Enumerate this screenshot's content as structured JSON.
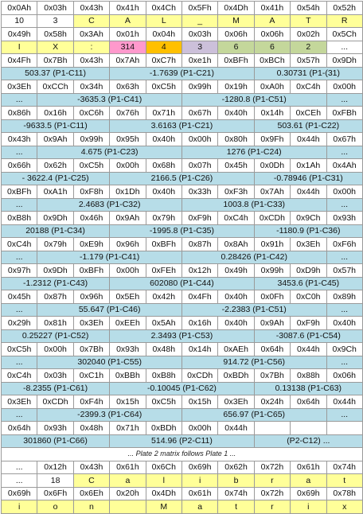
{
  "plate1": {
    "header": {
      "hex": [
        "0x0Ah",
        "0x03h",
        "0x43h",
        "0x41h",
        "0x4Ch",
        "0x5Fh",
        "0x4Dh",
        "0x41h",
        "0x54h",
        "0x52h"
      ],
      "ascii": [
        "10",
        "3",
        "C",
        "A",
        "L",
        "_",
        "M",
        "A",
        "T",
        "R"
      ],
      "hex2": [
        "0x49h",
        "0x58h",
        "0x3Ah",
        "0x01h",
        "0x04h",
        "0x03h",
        "0x06h",
        "0x06h",
        "0x02h",
        "0x5Ch"
      ],
      "ascii2": [
        "I",
        "X",
        ":",
        "314",
        "4",
        "3",
        "6",
        "6",
        "2",
        "..."
      ]
    },
    "rows": [
      {
        "hex": [
          "0x4Fh",
          "0x7Bh",
          "0x43h",
          "0x7Ah",
          "0xC7h",
          "0xe1h",
          "0xBFh",
          "0xBCh",
          "0x57h",
          "0x9Dh"
        ],
        "vals": [
          {
            "text": "503.37 (P1-C11)",
            "span": 3,
            "align": "l"
          },
          {
            "text": "-1.7639 (P1-C21)",
            "span": 4,
            "align": "c"
          },
          {
            "text": "0.30731 (P1-(31)",
            "span": 3,
            "align": "r"
          }
        ]
      },
      {
        "hex": [
          "0x3Eh",
          "0xCCh",
          "0x34h",
          "0x63h",
          "0xC5h",
          "0x99h",
          "0x19h",
          "0xA0h",
          "0xC4h",
          "0x00h"
        ],
        "vals": [
          {
            "text": "...",
            "span": 1,
            "align": "c"
          },
          {
            "text": "-3635.3 (P1-C41)",
            "span": 4,
            "align": "c"
          },
          {
            "text": "-1280.8 (P1-C51)",
            "span": 4,
            "align": "c"
          },
          {
            "text": "...",
            "span": 1,
            "align": "c"
          }
        ]
      },
      {
        "hex": [
          "0x86h",
          "0x16h",
          "0xC6h",
          "0x76h",
          "0x71h",
          "0x67h",
          "0x40h",
          "0x14h",
          "0xCEh",
          "0xFBh"
        ],
        "vals": [
          {
            "text": "-9633.5 (P1-C11)",
            "span": 3,
            "align": "l"
          },
          {
            "text": "3.6163 (P1-C21)",
            "span": 4,
            "align": "c"
          },
          {
            "text": "503.61 (P1-C22)",
            "span": 3,
            "align": "r"
          }
        ]
      },
      {
        "hex": [
          "0x43h",
          "0x9Ah",
          "0x99h",
          "0x95h",
          "0x40h",
          "0x00h",
          "0x80h",
          "0x9Fh",
          "0x44h",
          "0x67h"
        ],
        "vals": [
          {
            "text": "...",
            "span": 1,
            "align": "c"
          },
          {
            "text": "4.675 (P1-C23)",
            "span": 4,
            "align": "c"
          },
          {
            "text": "1276 (P1-C24)",
            "span": 4,
            "align": "c"
          },
          {
            "text": "...",
            "span": 1,
            "align": "c"
          }
        ]
      },
      {
        "hex": [
          "0x66h",
          "0x62h",
          "0xC5h",
          "0x00h",
          "0x68h",
          "0x07h",
          "0x45h",
          "0x0Dh",
          "0x1Ah",
          "0x4Ah"
        ],
        "vals": [
          {
            "text": "- 3622.4 (P1-C25)",
            "span": 3,
            "align": "l"
          },
          {
            "text": "2166.5 (P1-C26)",
            "span": 4,
            "align": "c"
          },
          {
            "text": "-0.78946 (P1-C31)",
            "span": 3,
            "align": "r"
          }
        ]
      },
      {
        "hex": [
          "0xBFh",
          "0xA1h",
          "0xF8h",
          "0x1Dh",
          "0x40h",
          "0x33h",
          "0xF3h",
          "0x7Ah",
          "0x44h",
          "0x00h"
        ],
        "vals": [
          {
            "text": "...",
            "span": 1,
            "align": "c"
          },
          {
            "text": "2.4683 (P1-C32)",
            "span": 4,
            "align": "c"
          },
          {
            "text": "1003.8 (P1-C33)",
            "span": 4,
            "align": "c"
          },
          {
            "text": "...",
            "span": 1,
            "align": "c"
          }
        ]
      },
      {
        "hex": [
          "0xB8h",
          "0x9Dh",
          "0x46h",
          "0x9Ah",
          "0x79h",
          "0xF9h",
          "0xC4h",
          "0xCDh",
          "0x9Ch",
          "0x93h"
        ],
        "vals": [
          {
            "text": "20188 (P1-C34)",
            "span": 3,
            "align": "l"
          },
          {
            "text": "-1995.8 (P1-C35)",
            "span": 4,
            "align": "c"
          },
          {
            "text": "-1180.9 (P1-C36)",
            "span": 3,
            "align": "r"
          }
        ]
      },
      {
        "hex": [
          "0xC4h",
          "0x79h",
          "0xE9h",
          "0x96h",
          "0xBFh",
          "0x87h",
          "0x8Ah",
          "0x91h",
          "0x3Eh",
          "0xF6h"
        ],
        "vals": [
          {
            "text": "...",
            "span": 1,
            "align": "c"
          },
          {
            "text": "-1.179 (P1-C41)",
            "span": 4,
            "align": "c"
          },
          {
            "text": "0.28426 (P1-C42)",
            "span": 4,
            "align": "c"
          },
          {
            "text": "...",
            "span": 1,
            "align": "c"
          }
        ]
      },
      {
        "hex": [
          "0x97h",
          "0x9Dh",
          "0xBFh",
          "0x00h",
          "0xFEh",
          "0x12h",
          "0x49h",
          "0x99h",
          "0xD9h",
          "0x57h"
        ],
        "vals": [
          {
            "text": "-1.2312 (P1-C43)",
            "span": 3,
            "align": "l"
          },
          {
            "text": "602080 (P1-C44)",
            "span": 4,
            "align": "c"
          },
          {
            "text": "3453.6 (P1-C45)",
            "span": 3,
            "align": "r"
          }
        ]
      },
      {
        "hex": [
          "0x45h",
          "0x87h",
          "0x96h",
          "0x5Eh",
          "0x42h",
          "0x4Fh",
          "0x40h",
          "0x0Fh",
          "0xC0h",
          "0x89h"
        ],
        "vals": [
          {
            "text": "...",
            "span": 1,
            "align": "c"
          },
          {
            "text": "55.647 (P1-C46)",
            "span": 4,
            "align": "c"
          },
          {
            "text": "-2.2383 (P1-C51)",
            "span": 4,
            "align": "c"
          },
          {
            "text": "...",
            "span": 1,
            "align": "c"
          }
        ]
      },
      {
        "hex": [
          "0x29h",
          "0x81h",
          "0x3Eh",
          "0xEEh",
          "0x5Ah",
          "0x16h",
          "0x40h",
          "0x9Ah",
          "0xF9h",
          "0x40h"
        ],
        "vals": [
          {
            "text": "0.25227 (P1-C52)",
            "span": 3,
            "align": "l"
          },
          {
            "text": "2.3493 (P1-C53)",
            "span": 4,
            "align": "c"
          },
          {
            "text": "-3087.6 (P1-C54)",
            "span": 3,
            "align": "r"
          }
        ]
      },
      {
        "hex": [
          "0xC5h",
          "0x00h",
          "0x7Bh",
          "0x93h",
          "0x48h",
          "0x14h",
          "0xAEh",
          "0x64h",
          "0x44h",
          "0x9Ch"
        ],
        "vals": [
          {
            "text": "...",
            "span": 1,
            "align": "c"
          },
          {
            "text": "302040 (P1-C55)",
            "span": 4,
            "align": "c"
          },
          {
            "text": "914.72 (P1-C56)",
            "span": 4,
            "align": "c"
          },
          {
            "text": "...",
            "span": 1,
            "align": "c"
          }
        ]
      },
      {
        "hex": [
          "0xC4h",
          "0x03h",
          "0xC1h",
          "0xBBh",
          "0xB8h",
          "0xCDh",
          "0xBDh",
          "0x7Bh",
          "0x88h",
          "0x06h"
        ],
        "vals": [
          {
            "text": "-8.2355 (P1-C61)",
            "span": 3,
            "align": "l"
          },
          {
            "text": "-0.10045 (P1-C62)",
            "span": 4,
            "align": "c"
          },
          {
            "text": "0.13138 (P1-C63)",
            "span": 3,
            "align": "r"
          }
        ]
      },
      {
        "hex": [
          "0x3Eh",
          "0xCDh",
          "0xF4h",
          "0x15h",
          "0xC5h",
          "0x15h",
          "0x3Eh",
          "0x24h",
          "0x64h",
          "0x44h"
        ],
        "vals": [
          {
            "text": "...",
            "span": 1,
            "align": "c"
          },
          {
            "text": "-2399.3 (P1-C64)",
            "span": 4,
            "align": "c"
          },
          {
            "text": "656.97 (P1-C65)",
            "span": 4,
            "align": "c"
          },
          {
            "text": "...",
            "span": 1,
            "align": "c"
          }
        ]
      },
      {
        "hex": [
          "0x64h",
          "0x93h",
          "0x48h",
          "0x71h",
          "0xBDh",
          "0x00h",
          "0x44h",
          "",
          "",
          ""
        ],
        "vals": [
          {
            "text": "301860 (P1-C66)",
            "span": 3,
            "align": "l"
          },
          {
            "text": "514.96 (P2-C11)",
            "span": 4,
            "align": "c"
          },
          {
            "text": "(P2-C12) ...",
            "span": 3,
            "align": "r"
          }
        ]
      }
    ]
  },
  "note": "... Plate 2 matrix follows Plate 1 ...",
  "plate2": {
    "hex": [
      "...",
      "0x12h",
      "0x43h",
      "0x61h",
      "0x6Ch",
      "0x69h",
      "0x62h",
      "0x72h",
      "0x61h",
      "0x74h"
    ],
    "ascii": [
      "...",
      "18",
      "C",
      "a",
      "l",
      "i",
      "b",
      "r",
      "a",
      "t"
    ],
    "hex2": [
      "0x69h",
      "0x6Fh",
      "0x6Eh",
      "0x20h",
      "0x4Dh",
      "0x61h",
      "0x74h",
      "0x72h",
      "0x69h",
      "0x78h"
    ],
    "ascii2": [
      "i",
      "o",
      "n",
      "",
      "M",
      "a",
      "t",
      "r",
      "i",
      "x"
    ]
  },
  "colors": {
    "value_row": "#b7dde8",
    "ascii_tag": "#ffff99",
    "highlight_pink": "#ff99cc",
    "highlight_orange": "#ffc000",
    "highlight_lavender": "#ccc0da",
    "highlight_green": "#c4d79b"
  }
}
